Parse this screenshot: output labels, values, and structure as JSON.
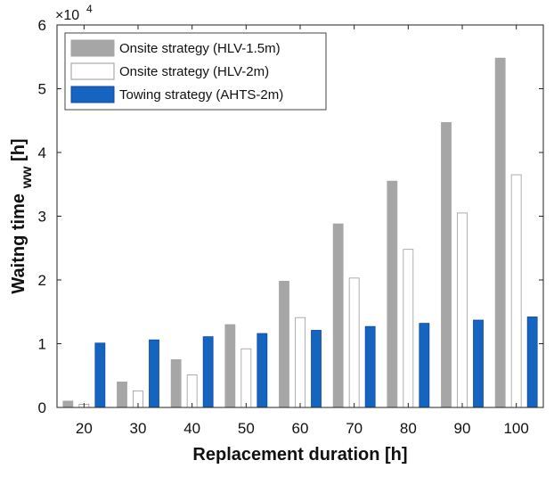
{
  "chart_data": {
    "type": "bar",
    "categories": [
      "20",
      "30",
      "40",
      "50",
      "60",
      "70",
      "80",
      "90",
      "100"
    ],
    "series": [
      {
        "name": "Onsite strategy (HLV-1.5m)",
        "color": "#a6a6a6",
        "stroke": "#a6a6a6",
        "values": [
          0.1,
          0.4,
          0.75,
          1.3,
          1.98,
          2.88,
          3.55,
          4.47,
          5.48
        ]
      },
      {
        "name": "Onsite strategy (HLV-2m)",
        "color": "#ffffff",
        "stroke": "#9a9a9a",
        "values": [
          0.05,
          0.26,
          0.51,
          0.92,
          1.41,
          2.03,
          2.48,
          3.05,
          3.65
        ]
      },
      {
        "name": "Towing strategy (AHTS-2m)",
        "color": "#1565c0",
        "stroke": "#0d47a1",
        "values": [
          1.01,
          1.06,
          1.11,
          1.16,
          1.21,
          1.27,
          1.32,
          1.37,
          1.42
        ]
      }
    ],
    "xlabel": "Replacement duration [h]",
    "ylabel": "Waitng time",
    "ylabel_subscript": "ww",
    "ylabel_unit": "[h]",
    "y_multiplier_base": "×10",
    "y_multiplier_exp": "4",
    "ylim": [
      0,
      6
    ],
    "yticks": [
      "0",
      "1",
      "2",
      "3",
      "4",
      "5",
      "6"
    ],
    "grid": false,
    "legend_position": "top-left"
  }
}
